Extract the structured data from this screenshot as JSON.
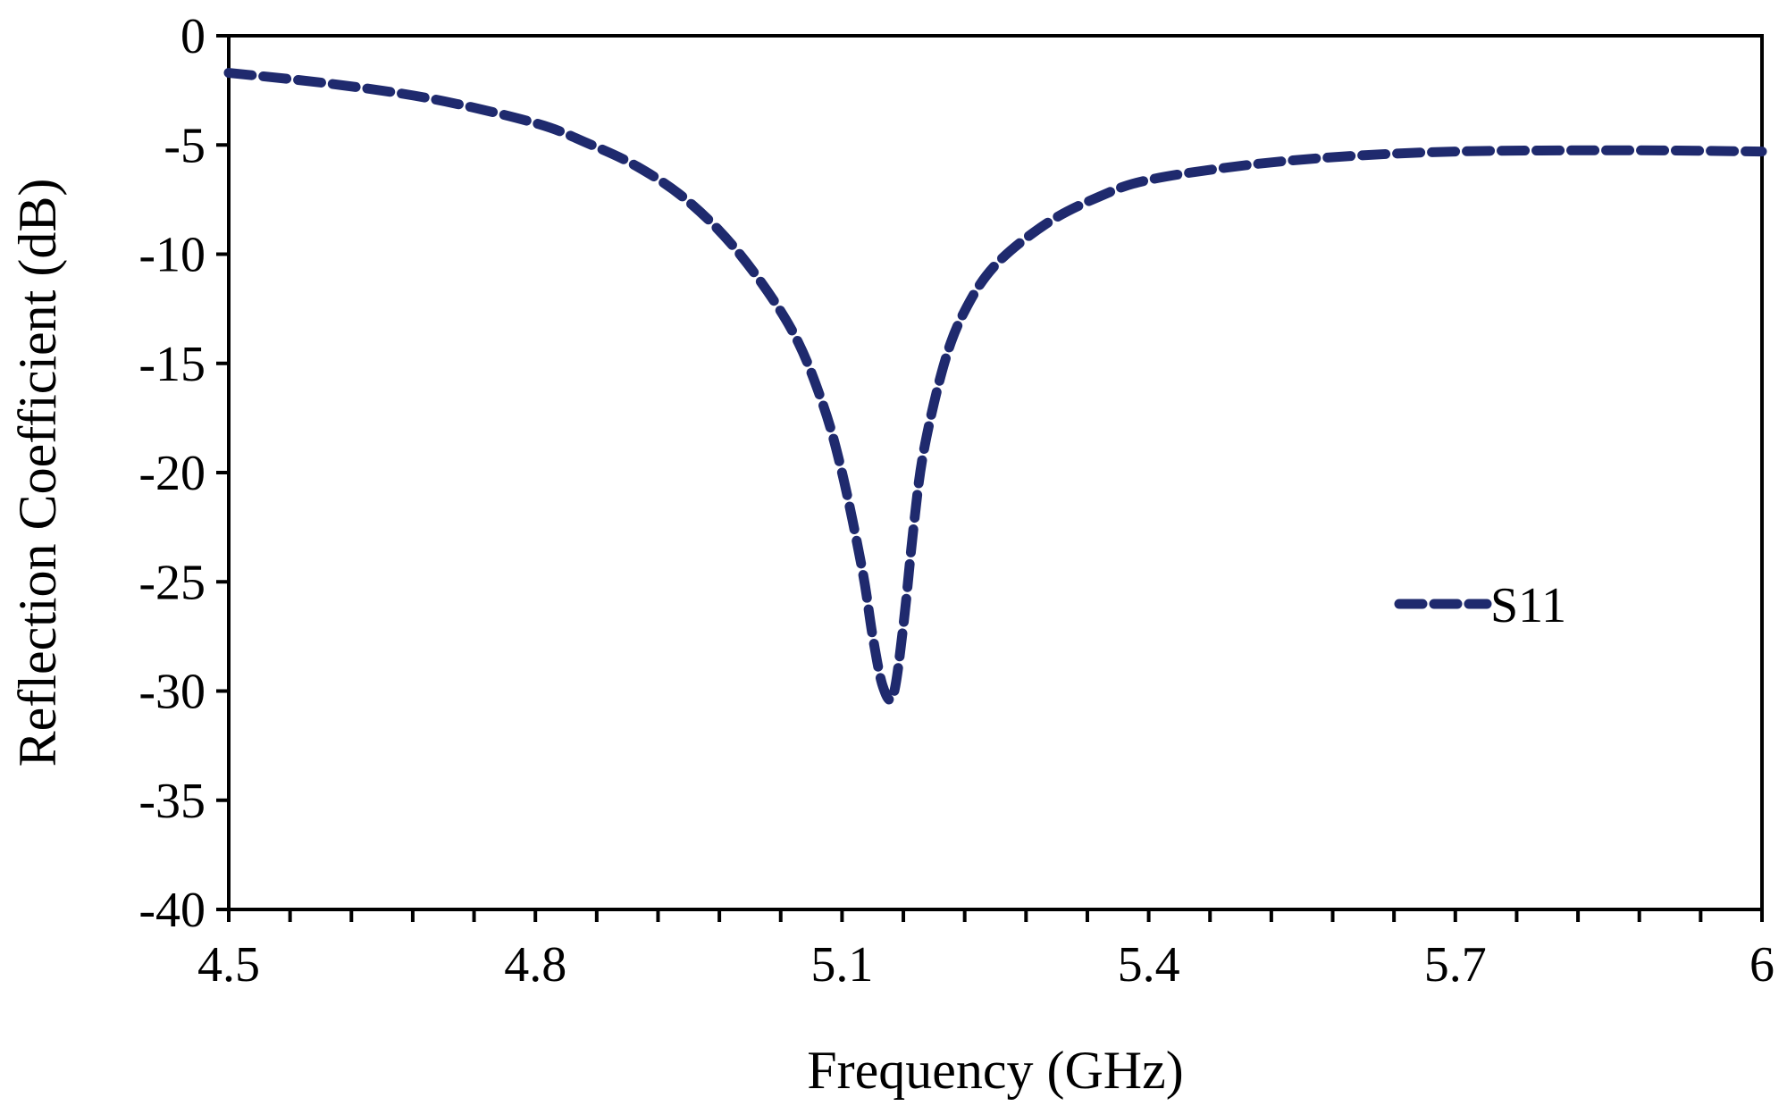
{
  "chart_data": {
    "type": "line",
    "title": "",
    "xlabel": "Frequency (GHz)",
    "ylabel": "Reflection Coefficient (dB)",
    "xlim": [
      4.5,
      6
    ],
    "ylim": [
      -40,
      0
    ],
    "x_ticks": [
      4.5,
      4.8,
      5.1,
      5.4,
      5.7,
      6
    ],
    "x_tick_labels": [
      "4.5",
      "4.8",
      "5.1",
      "5.4",
      "5.7",
      "6"
    ],
    "x_minor_step": 0.06,
    "y_ticks": [
      0,
      -5,
      -10,
      -15,
      -20,
      -25,
      -30,
      -35,
      -40
    ],
    "y_tick_labels": [
      "0",
      "-5",
      "-10",
      "-15",
      "-20",
      "-25",
      "-30",
      "-35",
      "-40"
    ],
    "grid": false,
    "legend_position": "right",
    "series": [
      {
        "name": "S11",
        "color": "#1f2a6e",
        "line_style": "dashed",
        "x": [
          4.5,
          4.6,
          4.7,
          4.8,
          4.85,
          4.9,
          4.95,
          5.0,
          5.05,
          5.08,
          5.1,
          5.12,
          5.13,
          5.14,
          5.15,
          5.16,
          5.17,
          5.18,
          5.2,
          5.22,
          5.25,
          5.3,
          5.35,
          5.4,
          5.5,
          5.6,
          5.7,
          5.8,
          5.9,
          6.0
        ],
        "values": [
          -1.7,
          -2.2,
          -2.9,
          -4.0,
          -4.9,
          -6.0,
          -7.6,
          -10.0,
          -13.4,
          -16.7,
          -20.0,
          -24.5,
          -27.5,
          -29.8,
          -30.2,
          -27.0,
          -22.5,
          -19.0,
          -15.0,
          -12.6,
          -10.5,
          -8.6,
          -7.4,
          -6.6,
          -5.9,
          -5.5,
          -5.3,
          -5.25,
          -5.25,
          -5.3
        ]
      }
    ]
  }
}
